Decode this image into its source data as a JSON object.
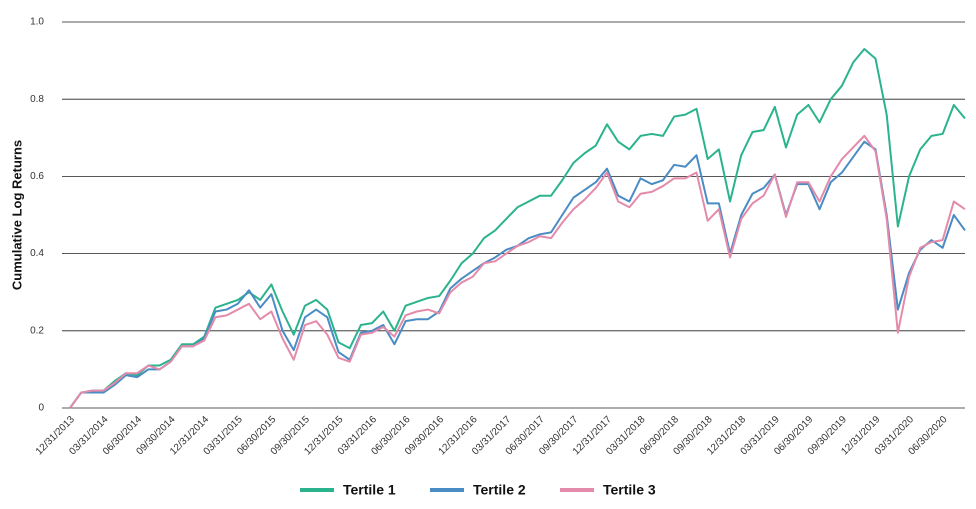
{
  "chart_data": {
    "type": "line",
    "y_label": "Cumulative Log Returns",
    "categories": [
      "12/31/2013",
      null,
      null,
      "03/31/2014",
      null,
      null,
      "06/30/2014",
      null,
      null,
      "09/30/2014",
      null,
      null,
      "12/31/2014",
      null,
      null,
      "03/31/2015",
      null,
      null,
      "06/30/2015",
      null,
      null,
      "09/30/2015",
      null,
      null,
      "12/31/2015",
      null,
      null,
      "03/31/2016",
      null,
      null,
      "06/30/2016",
      null,
      null,
      "09/30/2016",
      null,
      null,
      "12/31/2016",
      null,
      null,
      "03/31/2017",
      null,
      null,
      "06/30/2017",
      null,
      null,
      "09/30/2017",
      null,
      null,
      "12/31/2017",
      null,
      null,
      "03/31/2018",
      null,
      null,
      "06/30/2018",
      null,
      null,
      "09/30/2018",
      null,
      null,
      "12/31/2018",
      null,
      null,
      "03/31/2019",
      null,
      null,
      "06/30/2019",
      null,
      null,
      "09/30/2019",
      null,
      null,
      "12/31/2019",
      null,
      null,
      "03/31/2020",
      null,
      null,
      "06/30/2020",
      null,
      null
    ],
    "series": [
      {
        "name": "Tertile 1",
        "color": "#2bb38e",
        "values": [
          0,
          0.04,
          0.045,
          0.045,
          0.07,
          0.09,
          0.085,
          0.11,
          0.11,
          0.125,
          0.165,
          0.165,
          0.185,
          0.26,
          0.27,
          0.28,
          0.3,
          0.28,
          0.32,
          0.25,
          0.19,
          0.265,
          0.28,
          0.255,
          0.17,
          0.155,
          0.215,
          0.22,
          0.25,
          0.2,
          0.265,
          0.275,
          0.285,
          0.29,
          0.33,
          0.375,
          0.4,
          0.44,
          0.46,
          0.49,
          0.52,
          0.535,
          0.55,
          0.55,
          0.59,
          0.635,
          0.66,
          0.68,
          0.735,
          0.69,
          0.67,
          0.705,
          0.71,
          0.705,
          0.755,
          0.76,
          0.775,
          0.645,
          0.67,
          0.535,
          0.655,
          0.715,
          0.72,
          0.78,
          0.675,
          0.76,
          0.785,
          0.74,
          0.8,
          0.835,
          0.895,
          0.93,
          0.905,
          0.76,
          0.47,
          0.6,
          0.67,
          0.705,
          0.71,
          0.785,
          0.75
        ]
      },
      {
        "name": "Tertile 2",
        "color": "#4a8cc4",
        "values": [
          0,
          0.04,
          0.04,
          0.04,
          0.06,
          0.085,
          0.08,
          0.1,
          0.1,
          0.12,
          0.16,
          0.16,
          0.18,
          0.25,
          0.255,
          0.27,
          0.305,
          0.26,
          0.295,
          0.2,
          0.15,
          0.235,
          0.255,
          0.235,
          0.145,
          0.125,
          0.195,
          0.2,
          0.215,
          0.165,
          0.225,
          0.23,
          0.23,
          0.25,
          0.31,
          0.335,
          0.355,
          0.375,
          0.39,
          0.41,
          0.42,
          0.44,
          0.45,
          0.455,
          0.5,
          0.545,
          0.565,
          0.585,
          0.62,
          0.55,
          0.535,
          0.595,
          0.58,
          0.59,
          0.63,
          0.625,
          0.655,
          0.53,
          0.53,
          0.4,
          0.5,
          0.555,
          0.57,
          0.605,
          0.5,
          0.58,
          0.58,
          0.515,
          0.585,
          0.61,
          0.65,
          0.69,
          0.67,
          0.5,
          0.255,
          0.35,
          0.41,
          0.435,
          0.415,
          0.5,
          0.46
        ]
      },
      {
        "name": "Tertile 3",
        "color": "#e48aaa",
        "values": [
          0,
          0.04,
          0.045,
          0.045,
          0.065,
          0.09,
          0.09,
          0.11,
          0.1,
          0.12,
          0.16,
          0.16,
          0.175,
          0.235,
          0.24,
          0.255,
          0.27,
          0.23,
          0.25,
          0.18,
          0.125,
          0.215,
          0.225,
          0.19,
          0.13,
          0.12,
          0.19,
          0.195,
          0.21,
          0.185,
          0.24,
          0.25,
          0.255,
          0.245,
          0.3,
          0.325,
          0.34,
          0.375,
          0.38,
          0.4,
          0.42,
          0.43,
          0.445,
          0.44,
          0.48,
          0.515,
          0.54,
          0.57,
          0.61,
          0.535,
          0.52,
          0.555,
          0.56,
          0.575,
          0.595,
          0.595,
          0.61,
          0.485,
          0.515,
          0.39,
          0.49,
          0.53,
          0.55,
          0.605,
          0.495,
          0.585,
          0.585,
          0.535,
          0.6,
          0.645,
          0.675,
          0.705,
          0.665,
          0.49,
          0.195,
          0.34,
          0.415,
          0.43,
          0.435,
          0.535,
          0.515
        ]
      }
    ],
    "ylim": [
      0,
      1
    ],
    "yticks": [
      0,
      0.2,
      0.4,
      0.6,
      0.8,
      {
        "value": 1,
        "label": "1.0"
      }
    ],
    "grid": true,
    "legend": "bottom"
  }
}
